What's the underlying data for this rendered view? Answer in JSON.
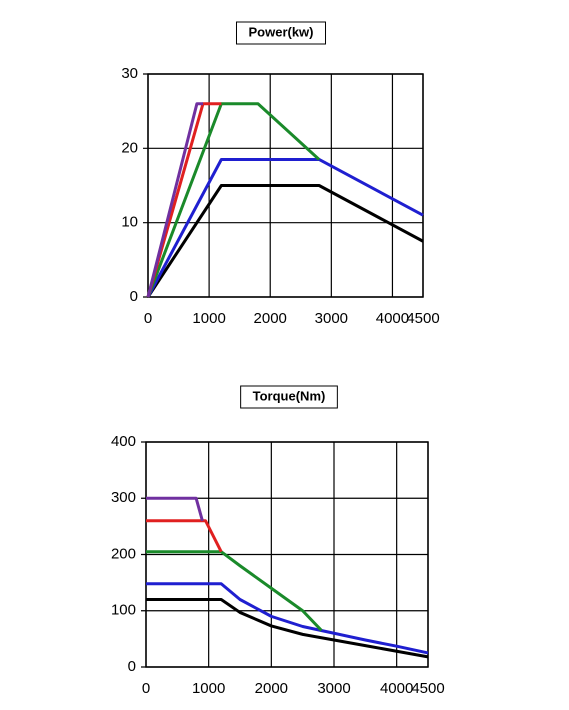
{
  "chart_data": [
    {
      "type": "line",
      "title": "Power(kw)",
      "grid": true,
      "xlim": [
        0,
        4500
      ],
      "xticks": [
        0,
        1000,
        2000,
        3000,
        4000,
        4500
      ],
      "ylim": [
        0,
        30
      ],
      "yticks": [
        0,
        10,
        20,
        30
      ],
      "series": [
        {
          "color": "#000000",
          "x": [
            0,
            1200,
            2800,
            4500
          ],
          "values": [
            0,
            15,
            15,
            7.5
          ]
        },
        {
          "color": "#1f1fd0",
          "x": [
            0,
            1200,
            2800,
            4500
          ],
          "values": [
            0,
            18.5,
            18.5,
            11
          ]
        },
        {
          "color": "#1a8a2a",
          "x": [
            0,
            1200,
            1800,
            2800
          ],
          "values": [
            0,
            26,
            26,
            18.5
          ]
        },
        {
          "color": "#e02020",
          "x": [
            0,
            900,
            1200
          ],
          "values": [
            0,
            26,
            26
          ]
        },
        {
          "color": "#7030a0",
          "x": [
            0,
            800,
            900
          ],
          "values": [
            0,
            26,
            26
          ]
        }
      ]
    },
    {
      "type": "line",
      "title": "Torque(Nm)",
      "grid": true,
      "xlim": [
        0,
        4500
      ],
      "xticks": [
        0,
        1000,
        2000,
        3000,
        4000,
        4500
      ],
      "ylim": [
        0,
        400
      ],
      "yticks": [
        0,
        100,
        200,
        300,
        400
      ],
      "series": [
        {
          "color": "#000000",
          "x": [
            0,
            1200,
            1500,
            2000,
            2500,
            3000,
            3500,
            4000,
            4500
          ],
          "values": [
            120,
            120,
            97,
            73,
            58,
            48,
            38,
            28,
            18
          ]
        },
        {
          "color": "#1f1fd0",
          "x": [
            0,
            1200,
            1500,
            2000,
            2500,
            3000,
            3500,
            4000,
            4500
          ],
          "values": [
            148,
            148,
            120,
            90,
            72,
            60,
            48,
            37,
            25
          ]
        },
        {
          "color": "#1a8a2a",
          "x": [
            0,
            1200,
            1500,
            2000,
            2500,
            2800
          ],
          "values": [
            205,
            205,
            180,
            140,
            100,
            65
          ]
        },
        {
          "color": "#e02020",
          "x": [
            0,
            950,
            1200
          ],
          "values": [
            260,
            260,
            205
          ]
        },
        {
          "color": "#7030a0",
          "x": [
            0,
            800,
            900
          ],
          "values": [
            300,
            300,
            260
          ]
        }
      ]
    }
  ]
}
